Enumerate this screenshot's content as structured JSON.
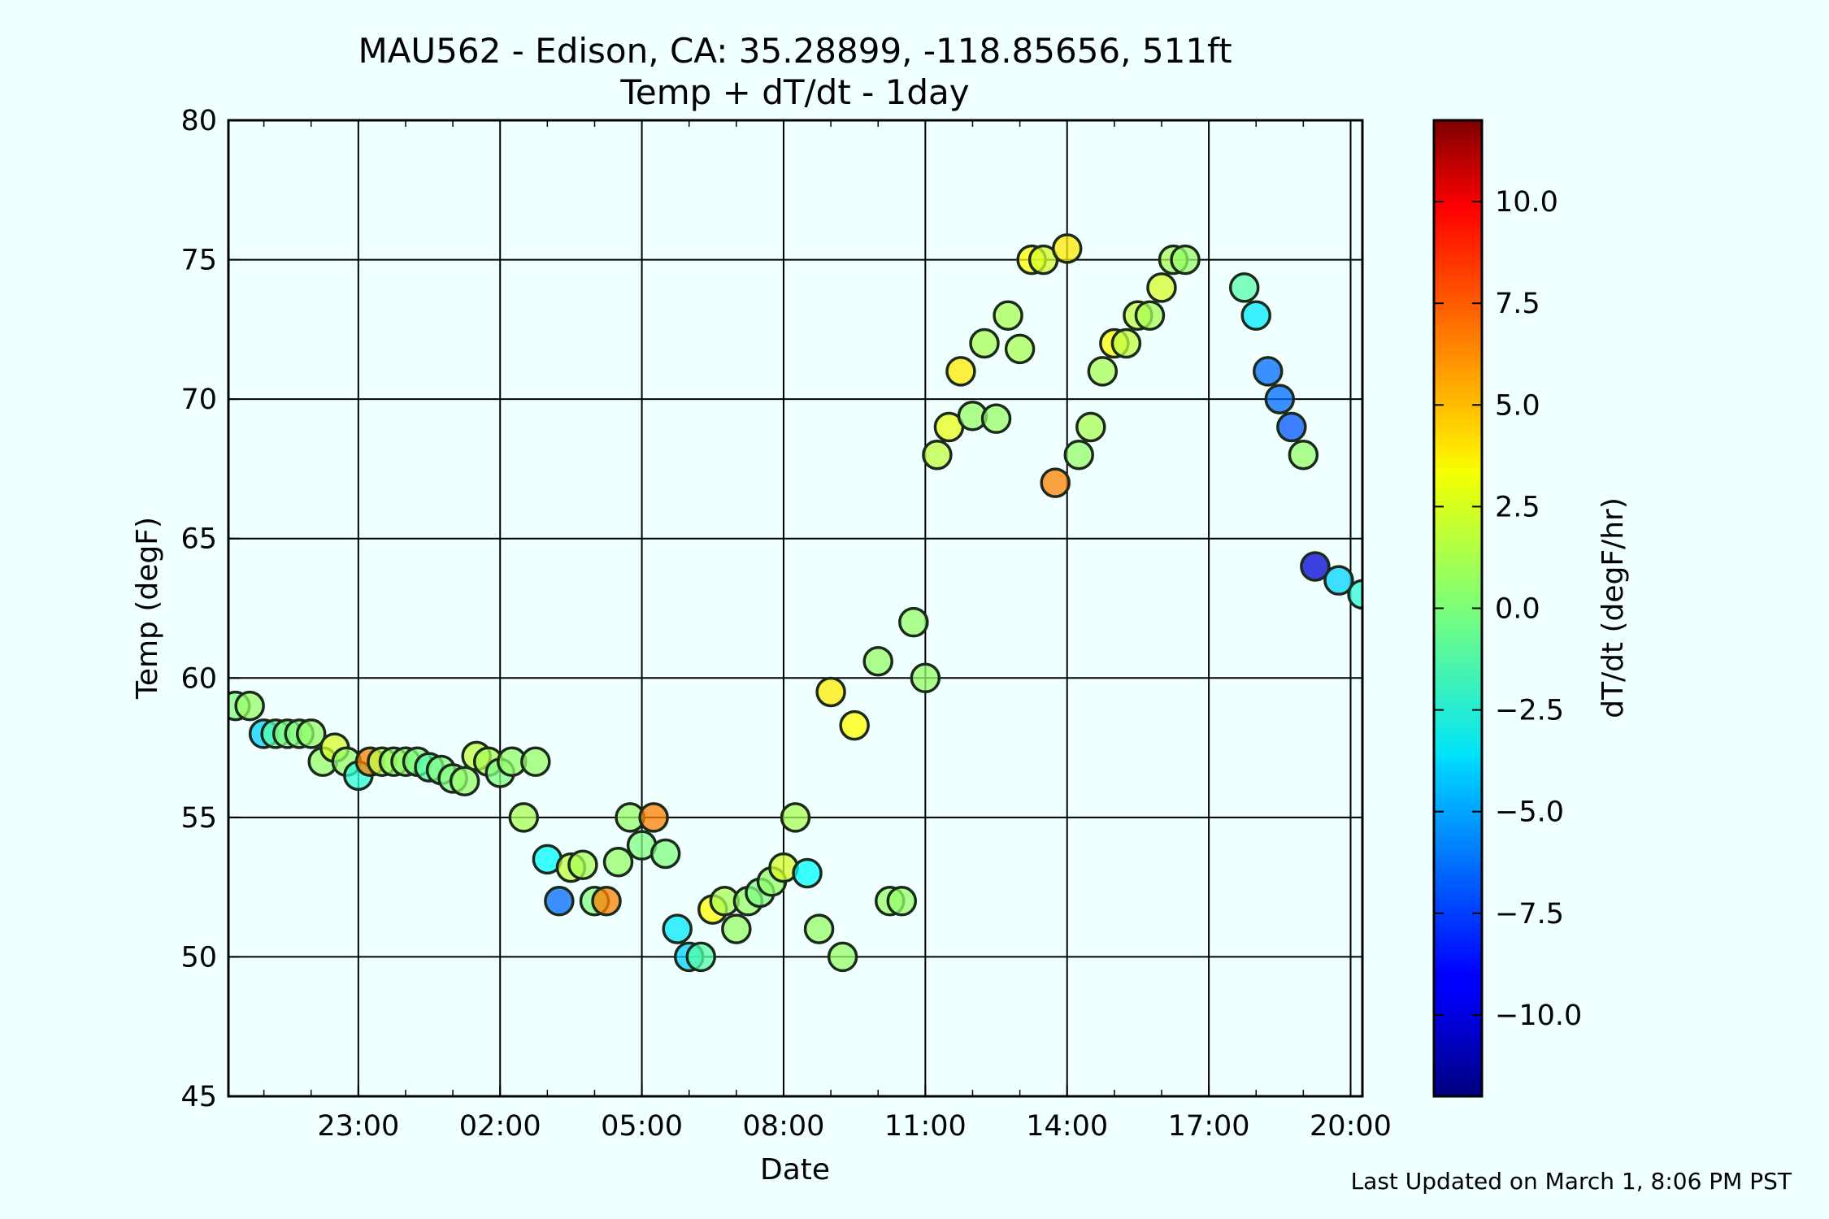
{
  "chart_data": {
    "type": "scatter",
    "title_line1": "MAU562 - Edison, CA: 35.28899, -118.85656, 511ft",
    "title_line2": "Temp + dT/dt - 1day",
    "xlabel": "Date",
    "ylabel": "Temp (degF)",
    "colorbar_label": "dT/dt (degF/hr)",
    "footer": "Last Updated on March 1, 8:06 PM PST",
    "x_unit": "hours",
    "xlim": [
      20.25,
      44.25
    ],
    "ylim": [
      45,
      80
    ],
    "x_ticks": [
      {
        "value": 23,
        "label": "23:00"
      },
      {
        "value": 26,
        "label": "02:00"
      },
      {
        "value": 29,
        "label": "05:00"
      },
      {
        "value": 32,
        "label": "08:00"
      },
      {
        "value": 35,
        "label": "11:00"
      },
      {
        "value": 38,
        "label": "14:00"
      },
      {
        "value": 41,
        "label": "17:00"
      },
      {
        "value": 44,
        "label": "20:00"
      }
    ],
    "y_ticks": [
      {
        "value": 45,
        "label": "45"
      },
      {
        "value": 50,
        "label": "50"
      },
      {
        "value": 55,
        "label": "55"
      },
      {
        "value": 60,
        "label": "60"
      },
      {
        "value": 65,
        "label": "65"
      },
      {
        "value": 70,
        "label": "70"
      },
      {
        "value": 75,
        "label": "75"
      },
      {
        "value": 80,
        "label": "80"
      }
    ],
    "colorbar_range": [
      -12,
      12
    ],
    "colorbar_ticks": [
      {
        "value": 10,
        "label": "10.0"
      },
      {
        "value": 7.5,
        "label": "7.5"
      },
      {
        "value": 5,
        "label": "5.0"
      },
      {
        "value": 2.5,
        "label": "2.5"
      },
      {
        "value": 0,
        "label": "0.0"
      },
      {
        "value": -2.5,
        "label": "−2.5"
      },
      {
        "value": -5,
        "label": "−5.0"
      },
      {
        "value": -7.5,
        "label": "−7.5"
      },
      {
        "value": -10,
        "label": "−10.0"
      }
    ],
    "grid": true,
    "points": [
      [
        20.4,
        59.0,
        0
      ],
      [
        20.7,
        59.0,
        0.5
      ],
      [
        21.0,
        58.0,
        -4
      ],
      [
        21.25,
        58.0,
        -1
      ],
      [
        21.5,
        58.0,
        0
      ],
      [
        21.75,
        58.0,
        0
      ],
      [
        22.0,
        58.0,
        0.5
      ],
      [
        22.25,
        57.0,
        0.5
      ],
      [
        22.5,
        57.5,
        2
      ],
      [
        22.75,
        57.0,
        0.5
      ],
      [
        23.0,
        56.5,
        -2
      ],
      [
        23.25,
        57.0,
        6
      ],
      [
        23.5,
        57.0,
        1.5
      ],
      [
        23.75,
        57.0,
        0.5
      ],
      [
        24.0,
        57.0,
        0.5
      ],
      [
        24.25,
        57.0,
        0
      ],
      [
        24.5,
        56.8,
        -1
      ],
      [
        24.75,
        56.7,
        0
      ],
      [
        25.0,
        56.4,
        0
      ],
      [
        25.25,
        56.3,
        0.5
      ],
      [
        25.5,
        57.2,
        1.5
      ],
      [
        25.75,
        57.0,
        1
      ],
      [
        26.0,
        56.6,
        0
      ],
      [
        26.25,
        57.0,
        0.5
      ],
      [
        26.5,
        55.0,
        1
      ],
      [
        26.75,
        57.0,
        0.5
      ],
      [
        27.0,
        53.5,
        -3
      ],
      [
        27.25,
        52.0,
        -6.5
      ],
      [
        27.5,
        53.2,
        1.5
      ],
      [
        27.75,
        53.3,
        1
      ],
      [
        28.0,
        52.0,
        0
      ],
      [
        28.25,
        52.0,
        6
      ],
      [
        28.5,
        53.4,
        0.5
      ],
      [
        28.75,
        55.0,
        0.5
      ],
      [
        29.0,
        54.0,
        0
      ],
      [
        29.25,
        55.0,
        6
      ],
      [
        29.5,
        53.7,
        0
      ],
      [
        29.75,
        51.0,
        -3.5
      ],
      [
        30.0,
        50.0,
        -4
      ],
      [
        30.25,
        50.0,
        -1
      ],
      [
        30.5,
        51.7,
        3
      ],
      [
        30.75,
        52.0,
        1
      ],
      [
        31.0,
        51.0,
        0.5
      ],
      [
        31.25,
        52.0,
        0.5
      ],
      [
        31.5,
        52.3,
        0
      ],
      [
        31.75,
        52.7,
        0.5
      ],
      [
        32.0,
        53.2,
        2
      ],
      [
        32.25,
        55.0,
        1
      ],
      [
        32.5,
        53.0,
        -3
      ],
      [
        32.75,
        51.0,
        0.5
      ],
      [
        33.0,
        59.5,
        3.5
      ],
      [
        33.25,
        50.0,
        0.5
      ],
      [
        33.5,
        58.3,
        3
      ],
      [
        34.0,
        60.6,
        0.5
      ],
      [
        34.25,
        52.0,
        0.5
      ],
      [
        34.5,
        52.0,
        0.5
      ],
      [
        34.75,
        62.0,
        0.5
      ],
      [
        35.0,
        60.0,
        0.5
      ],
      [
        35.25,
        68.0,
        1.5
      ],
      [
        35.5,
        69.0,
        2.5
      ],
      [
        35.75,
        71.0,
        3.5
      ],
      [
        36.0,
        69.4,
        0.5
      ],
      [
        36.25,
        72.0,
        1
      ],
      [
        36.5,
        69.3,
        0.5
      ],
      [
        36.75,
        73.0,
        1
      ],
      [
        37.0,
        71.8,
        1
      ],
      [
        37.25,
        75.0,
        3
      ],
      [
        37.5,
        75.0,
        2
      ],
      [
        37.75,
        67.0,
        6
      ],
      [
        38.0,
        75.4,
        3.5
      ],
      [
        38.25,
        68.0,
        0.5
      ],
      [
        38.5,
        69.0,
        1
      ],
      [
        38.75,
        71.0,
        1
      ],
      [
        39.0,
        72.0,
        3
      ],
      [
        39.25,
        72.0,
        1.5
      ],
      [
        39.5,
        73.0,
        1.5
      ],
      [
        39.75,
        73.0,
        1
      ],
      [
        40.0,
        74.0,
        2
      ],
      [
        40.25,
        75.0,
        1
      ],
      [
        40.5,
        75.0,
        0.5
      ],
      [
        41.75,
        74.0,
        -1
      ],
      [
        42.0,
        73.0,
        -3.5
      ],
      [
        42.25,
        71.0,
        -6.5
      ],
      [
        42.5,
        70.0,
        -6.5
      ],
      [
        42.75,
        69.0,
        -7
      ],
      [
        43.0,
        68.0,
        0.5
      ],
      [
        43.25,
        64.0,
        -10
      ],
      [
        43.75,
        63.5,
        -4
      ],
      [
        44.25,
        63.0,
        -2
      ]
    ]
  }
}
